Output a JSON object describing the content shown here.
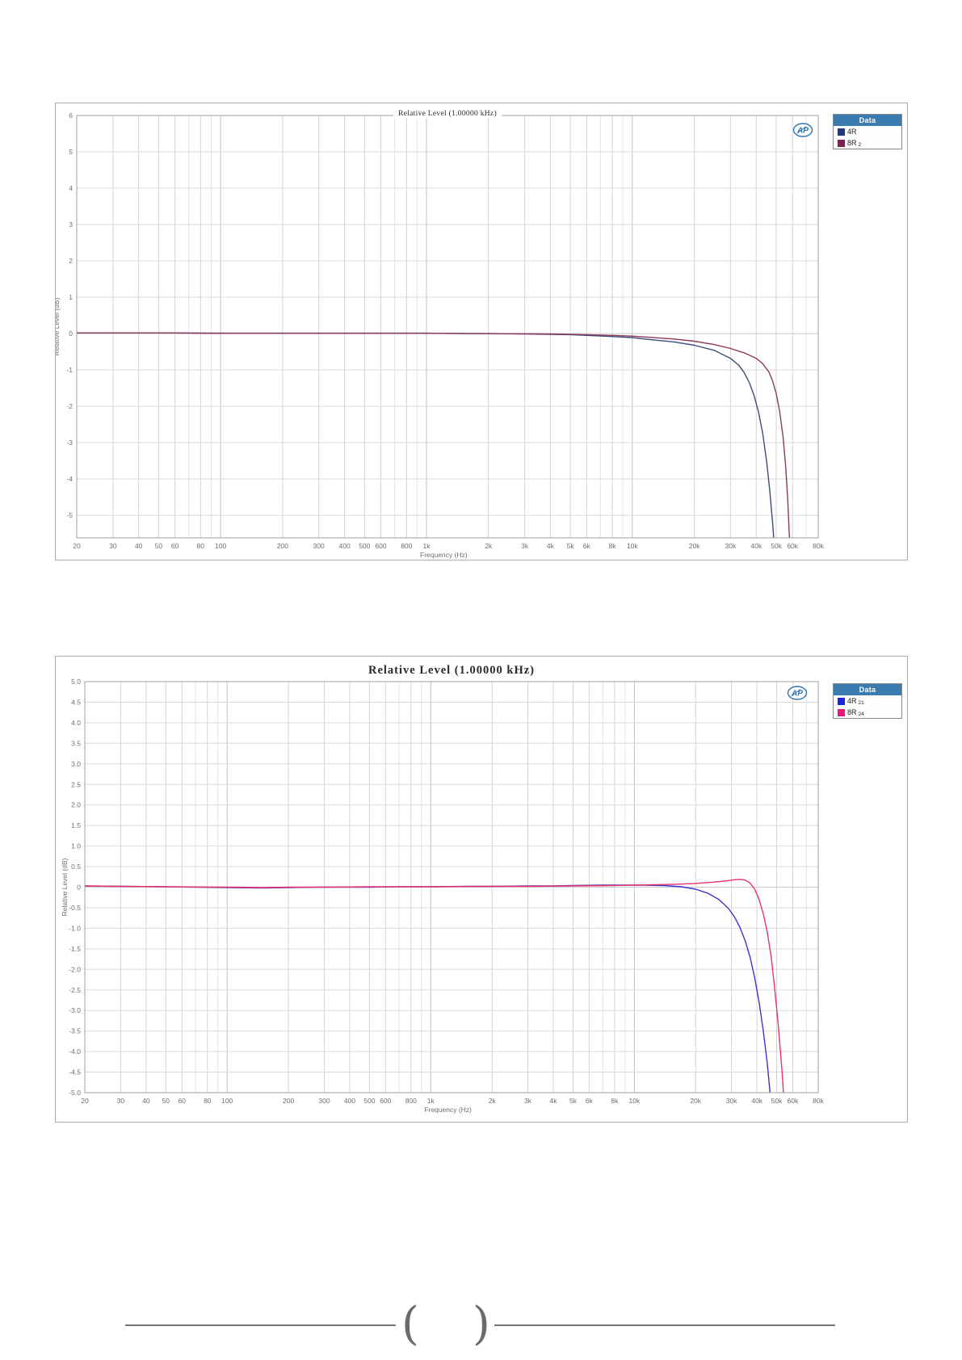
{
  "page": {
    "background": "#ffffff",
    "footer": {
      "left_glyph": "(",
      "right_glyph": ")",
      "line_color": "#767676"
    }
  },
  "chart_data": [
    {
      "type": "line",
      "title": "Relative Level (1.00000 kHz)",
      "xlabel": "Frequency (Hz)",
      "ylabel": "Relative Level (dB)",
      "x_scale": "log",
      "grid": true,
      "xlim": [
        20,
        80000
      ],
      "ylim": [
        -5.62,
        6
      ],
      "y_ticks": [
        6,
        5,
        4,
        3,
        2,
        1,
        0,
        -1,
        -2,
        -3,
        -4,
        -5
      ],
      "y_tick_labels": [
        "6",
        "5",
        "4",
        "3",
        "2",
        "1",
        "0",
        "-1",
        "-2",
        "-3",
        "-4",
        "-5"
      ],
      "x_ticks": [
        20,
        30,
        40,
        50,
        60,
        80,
        100,
        200,
        300,
        400,
        500,
        600,
        800,
        1000,
        2000,
        3000,
        4000,
        5000,
        6000,
        8000,
        10000,
        20000,
        30000,
        40000,
        50000,
        60000,
        80000
      ],
      "x_tick_labels": [
        "20",
        "30",
        "40",
        "50",
        "60",
        "80",
        "100",
        "200",
        "300",
        "400",
        "500",
        "600",
        "800",
        "1k",
        "2k",
        "3k",
        "4k",
        "5k",
        "6k",
        "8k",
        "10k",
        "20k",
        "30k",
        "40k",
        "50k",
        "60k",
        "80k"
      ],
      "x_minor": [
        70,
        90,
        700,
        900,
        7000,
        9000,
        70000
      ],
      "watermark": "AP",
      "legend": {
        "header": "Data",
        "header_bg": "#3b7cb0",
        "position": "outside top-right",
        "items": [
          {
            "label": "4R",
            "sub": "",
            "color": "#1b3b7a"
          },
          {
            "label": "8R",
            "sub": "2",
            "color": "#7c2057"
          }
        ]
      },
      "series": [
        {
          "name": "4R",
          "color": "#3d4c7e",
          "points": [
            [
              20,
              0.02
            ],
            [
              30,
              0.02
            ],
            [
              50,
              0.02
            ],
            [
              80,
              0.01
            ],
            [
              100,
              0.01
            ],
            [
              200,
              0.01
            ],
            [
              300,
              0.01
            ],
            [
              500,
              0.01
            ],
            [
              800,
              0.01
            ],
            [
              1000,
              0.01
            ],
            [
              1500,
              0
            ],
            [
              2000,
              0
            ],
            [
              3000,
              -0.01
            ],
            [
              4000,
              -0.02
            ],
            [
              5000,
              -0.03
            ],
            [
              6000,
              -0.05
            ],
            [
              8000,
              -0.08
            ],
            [
              10000,
              -0.11
            ],
            [
              12000,
              -0.16
            ],
            [
              16000,
              -0.23
            ],
            [
              20000,
              -0.32
            ],
            [
              25000,
              -0.46
            ],
            [
              30000,
              -0.68
            ],
            [
              33000,
              -0.88
            ],
            [
              35000,
              -1.08
            ],
            [
              37000,
              -1.35
            ],
            [
              39000,
              -1.7
            ],
            [
              41000,
              -2.15
            ],
            [
              43000,
              -2.75
            ],
            [
              45000,
              -3.55
            ],
            [
              46500,
              -4.3
            ],
            [
              48000,
              -5.2
            ],
            [
              48800,
              -5.75
            ]
          ]
        },
        {
          "name": "8R 2",
          "color": "#8c3a5f",
          "points": [
            [
              20,
              0.02
            ],
            [
              50,
              0.02
            ],
            [
              100,
              0.01
            ],
            [
              300,
              0.01
            ],
            [
              1000,
              0.01
            ],
            [
              2000,
              0
            ],
            [
              4000,
              -0.01
            ],
            [
              6000,
              -0.03
            ],
            [
              8000,
              -0.05
            ],
            [
              10000,
              -0.07
            ],
            [
              12000,
              -0.1
            ],
            [
              16000,
              -0.15
            ],
            [
              20000,
              -0.21
            ],
            [
              25000,
              -0.3
            ],
            [
              30000,
              -0.41
            ],
            [
              35000,
              -0.53
            ],
            [
              40000,
              -0.68
            ],
            [
              43000,
              -0.83
            ],
            [
              46000,
              -1.05
            ],
            [
              48000,
              -1.3
            ],
            [
              50000,
              -1.65
            ],
            [
              52000,
              -2.15
            ],
            [
              54000,
              -2.85
            ],
            [
              55500,
              -3.6
            ],
            [
              56800,
              -4.5
            ],
            [
              57800,
              -5.45
            ],
            [
              58200,
              -5.8
            ]
          ]
        }
      ]
    },
    {
      "type": "line",
      "title": "Relative Level (1.00000 kHz)",
      "xlabel": "Frequency (Hz)",
      "ylabel": "Relative Level (dB)",
      "x_scale": "log",
      "grid": true,
      "xlim": [
        20,
        80000
      ],
      "ylim": [
        -5,
        5
      ],
      "y_ticks": [
        5,
        4.5,
        4,
        3.5,
        3,
        2.5,
        2,
        1.5,
        1,
        0.5,
        0,
        -0.5,
        -1,
        -1.5,
        -2,
        -2.5,
        -3,
        -3.5,
        -4,
        -4.5,
        -5
      ],
      "y_tick_labels": [
        "5.0",
        "4.5",
        "4.0",
        "3.5",
        "3.0",
        "2.5",
        "2.0",
        "1.5",
        "1.0",
        "0.5",
        "0",
        "-0.5",
        "-1.0",
        "-1.5",
        "-2.0",
        "-2.5",
        "-3.0",
        "-3.5",
        "-4.0",
        "-4.5",
        "-5.0"
      ],
      "x_ticks": [
        20,
        30,
        40,
        50,
        60,
        80,
        100,
        200,
        300,
        400,
        500,
        600,
        800,
        1000,
        2000,
        3000,
        4000,
        5000,
        6000,
        8000,
        10000,
        20000,
        30000,
        40000,
        50000,
        60000,
        80000
      ],
      "x_tick_labels": [
        "20",
        "30",
        "40",
        "50",
        "60",
        "80",
        "100",
        "200",
        "300",
        "400",
        "500",
        "600",
        "800",
        "1k",
        "2k",
        "3k",
        "4k",
        "5k",
        "6k",
        "8k",
        "10k",
        "20k",
        "30k",
        "40k",
        "50k",
        "60k",
        "80k"
      ],
      "x_minor": [
        70,
        90,
        700,
        900,
        7000,
        9000,
        70000
      ],
      "watermark": "AP",
      "legend": {
        "header": "Data",
        "header_bg": "#3b7cb0",
        "position": "outside top-right",
        "items": [
          {
            "label": "4R",
            "sub": "21",
            "color": "#1c24e0"
          },
          {
            "label": "8R",
            "sub": "24",
            "color": "#ee1480"
          }
        ]
      },
      "series": [
        {
          "name": "4R 21",
          "color": "#3a35c9",
          "points": [
            [
              20,
              0.03
            ],
            [
              30,
              0.02
            ],
            [
              50,
              0.01
            ],
            [
              70,
              0
            ],
            [
              100,
              -0.01
            ],
            [
              150,
              -0.02
            ],
            [
              200,
              -0.01
            ],
            [
              300,
              0
            ],
            [
              500,
              0
            ],
            [
              700,
              0.01
            ],
            [
              1000,
              0.01
            ],
            [
              1500,
              0.02
            ],
            [
              2000,
              0.02
            ],
            [
              3000,
              0.03
            ],
            [
              4000,
              0.03
            ],
            [
              5000,
              0.04
            ],
            [
              7000,
              0.05
            ],
            [
              9000,
              0.05
            ],
            [
              11000,
              0.05
            ],
            [
              14000,
              0.04
            ],
            [
              17000,
              0.01
            ],
            [
              20000,
              -0.05
            ],
            [
              23000,
              -0.15
            ],
            [
              26000,
              -0.3
            ],
            [
              29000,
              -0.52
            ],
            [
              31000,
              -0.72
            ],
            [
              33000,
              -0.98
            ],
            [
              35000,
              -1.3
            ],
            [
              37000,
              -1.7
            ],
            [
              39000,
              -2.2
            ],
            [
              41000,
              -2.8
            ],
            [
              43000,
              -3.5
            ],
            [
              45000,
              -4.3
            ],
            [
              47000,
              -5.3
            ],
            [
              47800,
              -5.7
            ]
          ]
        },
        {
          "name": "8R 24",
          "color": "#e8336e",
          "points": [
            [
              20,
              0.03
            ],
            [
              30,
              0.02
            ],
            [
              50,
              0.01
            ],
            [
              100,
              0
            ],
            [
              150,
              -0.01
            ],
            [
              200,
              0
            ],
            [
              300,
              0
            ],
            [
              500,
              0.01
            ],
            [
              1000,
              0.01
            ],
            [
              2000,
              0.02
            ],
            [
              3000,
              0.02
            ],
            [
              5000,
              0.03
            ],
            [
              8000,
              0.04
            ],
            [
              10000,
              0.05
            ],
            [
              13000,
              0.06
            ],
            [
              16000,
              0.07
            ],
            [
              20000,
              0.09
            ],
            [
              24000,
              0.12
            ],
            [
              28000,
              0.15
            ],
            [
              31000,
              0.18
            ],
            [
              33000,
              0.19
            ],
            [
              35000,
              0.17
            ],
            [
              37000,
              0.1
            ],
            [
              39000,
              -0.05
            ],
            [
              41000,
              -0.3
            ],
            [
              43000,
              -0.65
            ],
            [
              45000,
              -1.1
            ],
            [
              47000,
              -1.7
            ],
            [
              49000,
              -2.5
            ],
            [
              51000,
              -3.4
            ],
            [
              53000,
              -4.4
            ],
            [
              54500,
              -5.3
            ],
            [
              55000,
              -5.7
            ]
          ]
        }
      ]
    }
  ]
}
